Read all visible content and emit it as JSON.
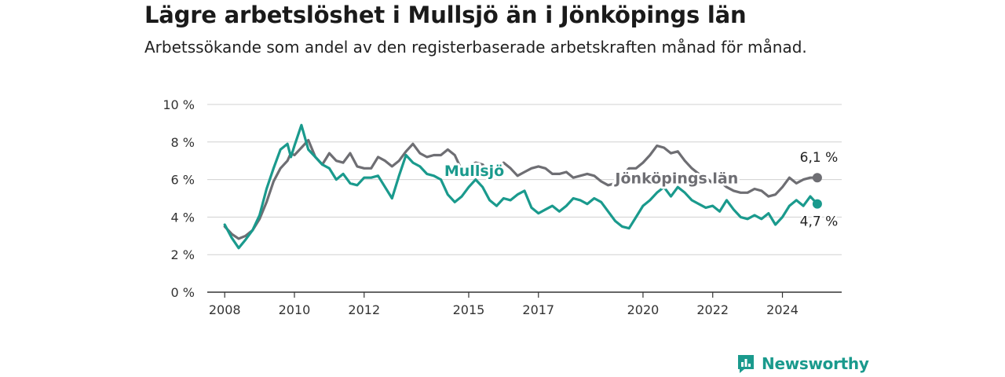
{
  "header": {
    "title": "Lägre arbetslöshet i Mullsjö än i Jönköpings län",
    "subtitle": "Arbetssökande som andel av den registerbaserade arbetskraften månad för månad."
  },
  "brand": {
    "name": "Newsworthy",
    "icon": "newsworthy-logo-icon",
    "color": "#1a9a8d"
  },
  "chart_data": {
    "type": "line",
    "xlim": [
      2007.5,
      2025.7
    ],
    "ylim": [
      0,
      10
    ],
    "yticks": [
      0,
      2,
      4,
      6,
      8,
      10
    ],
    "ytick_labels": [
      "0 %",
      "2 %",
      "4 %",
      "6 %",
      "8 %",
      "10 %"
    ],
    "xticks": [
      2008,
      2010,
      2012,
      2015,
      2017,
      2020,
      2022,
      2024
    ],
    "xtick_labels": [
      "2008",
      "2010",
      "2012",
      "2015",
      "2017",
      "2020",
      "2022",
      "2024"
    ],
    "grid": true,
    "series": [
      {
        "name": "Jönköpings län",
        "color": "#6e6e73",
        "end_label": "6,1 %",
        "points": [
          [
            2008.0,
            3.5
          ],
          [
            2008.2,
            3.1
          ],
          [
            2008.4,
            2.85
          ],
          [
            2008.6,
            3.0
          ],
          [
            2008.8,
            3.3
          ],
          [
            2009.0,
            3.9
          ],
          [
            2009.2,
            4.8
          ],
          [
            2009.4,
            5.9
          ],
          [
            2009.6,
            6.6
          ],
          [
            2009.8,
            7.0
          ],
          [
            2009.9,
            7.4
          ],
          [
            2010.0,
            7.3
          ],
          [
            2010.2,
            7.7
          ],
          [
            2010.4,
            8.1
          ],
          [
            2010.6,
            7.2
          ],
          [
            2010.8,
            6.8
          ],
          [
            2011.0,
            7.4
          ],
          [
            2011.2,
            7.0
          ],
          [
            2011.4,
            6.9
          ],
          [
            2011.6,
            7.4
          ],
          [
            2011.8,
            6.7
          ],
          [
            2012.0,
            6.6
          ],
          [
            2012.2,
            6.6
          ],
          [
            2012.4,
            7.2
          ],
          [
            2012.6,
            7.0
          ],
          [
            2012.8,
            6.7
          ],
          [
            2013.0,
            7.0
          ],
          [
            2013.2,
            7.5
          ],
          [
            2013.4,
            7.9
          ],
          [
            2013.6,
            7.4
          ],
          [
            2013.8,
            7.2
          ],
          [
            2014.0,
            7.3
          ],
          [
            2014.2,
            7.3
          ],
          [
            2014.4,
            7.6
          ],
          [
            2014.6,
            7.3
          ],
          [
            2014.8,
            6.5
          ],
          [
            2015.0,
            6.7
          ],
          [
            2015.2,
            6.9
          ],
          [
            2015.4,
            6.8
          ],
          [
            2015.6,
            6.3
          ],
          [
            2015.8,
            6.6
          ],
          [
            2016.0,
            6.9
          ],
          [
            2016.2,
            6.6
          ],
          [
            2016.4,
            6.2
          ],
          [
            2016.6,
            6.4
          ],
          [
            2016.8,
            6.6
          ],
          [
            2017.0,
            6.7
          ],
          [
            2017.2,
            6.6
          ],
          [
            2017.4,
            6.3
          ],
          [
            2017.6,
            6.3
          ],
          [
            2017.8,
            6.4
          ],
          [
            2018.0,
            6.1
          ],
          [
            2018.2,
            6.2
          ],
          [
            2018.4,
            6.3
          ],
          [
            2018.6,
            6.2
          ],
          [
            2018.8,
            5.9
          ],
          [
            2019.0,
            5.7
          ],
          [
            2019.2,
            5.8
          ],
          [
            2019.4,
            6.2
          ],
          [
            2019.6,
            6.6
          ],
          [
            2019.8,
            6.6
          ],
          [
            2020.0,
            6.9
          ],
          [
            2020.2,
            7.3
          ],
          [
            2020.4,
            7.8
          ],
          [
            2020.6,
            7.7
          ],
          [
            2020.8,
            7.4
          ],
          [
            2021.0,
            7.5
          ],
          [
            2021.2,
            7.0
          ],
          [
            2021.4,
            6.6
          ],
          [
            2021.6,
            6.3
          ],
          [
            2021.8,
            6.1
          ],
          [
            2022.0,
            5.8
          ],
          [
            2022.2,
            5.9
          ],
          [
            2022.4,
            5.6
          ],
          [
            2022.6,
            5.4
          ],
          [
            2022.8,
            5.3
          ],
          [
            2023.0,
            5.3
          ],
          [
            2023.2,
            5.5
          ],
          [
            2023.4,
            5.4
          ],
          [
            2023.6,
            5.1
          ],
          [
            2023.8,
            5.2
          ],
          [
            2024.0,
            5.6
          ],
          [
            2024.2,
            6.1
          ],
          [
            2024.4,
            5.8
          ],
          [
            2024.6,
            6.0
          ],
          [
            2024.8,
            6.1
          ],
          [
            2025.0,
            6.1
          ]
        ]
      },
      {
        "name": "Mullsjö",
        "color": "#1a9a8d",
        "end_label": "4,7 %",
        "points": [
          [
            2008.0,
            3.6
          ],
          [
            2008.2,
            2.9
          ],
          [
            2008.4,
            2.35
          ],
          [
            2008.6,
            2.8
          ],
          [
            2008.8,
            3.3
          ],
          [
            2009.0,
            4.1
          ],
          [
            2009.2,
            5.5
          ],
          [
            2009.4,
            6.6
          ],
          [
            2009.6,
            7.6
          ],
          [
            2009.8,
            7.9
          ],
          [
            2009.9,
            7.2
          ],
          [
            2010.0,
            7.8
          ],
          [
            2010.2,
            8.9
          ],
          [
            2010.4,
            7.6
          ],
          [
            2010.6,
            7.2
          ],
          [
            2010.8,
            6.8
          ],
          [
            2011.0,
            6.6
          ],
          [
            2011.2,
            6.0
          ],
          [
            2011.4,
            6.3
          ],
          [
            2011.6,
            5.8
          ],
          [
            2011.8,
            5.7
          ],
          [
            2012.0,
            6.1
          ],
          [
            2012.2,
            6.1
          ],
          [
            2012.4,
            6.2
          ],
          [
            2012.6,
            5.6
          ],
          [
            2012.8,
            5.0
          ],
          [
            2013.0,
            6.2
          ],
          [
            2013.2,
            7.3
          ],
          [
            2013.4,
            6.9
          ],
          [
            2013.6,
            6.7
          ],
          [
            2013.8,
            6.3
          ],
          [
            2014.0,
            6.2
          ],
          [
            2014.2,
            6.0
          ],
          [
            2014.4,
            5.2
          ],
          [
            2014.6,
            4.8
          ],
          [
            2014.8,
            5.1
          ],
          [
            2015.0,
            5.6
          ],
          [
            2015.2,
            6.0
          ],
          [
            2015.4,
            5.6
          ],
          [
            2015.6,
            4.9
          ],
          [
            2015.8,
            4.6
          ],
          [
            2016.0,
            5.0
          ],
          [
            2016.2,
            4.9
          ],
          [
            2016.4,
            5.2
          ],
          [
            2016.6,
            5.4
          ],
          [
            2016.8,
            4.5
          ],
          [
            2017.0,
            4.2
          ],
          [
            2017.2,
            4.4
          ],
          [
            2017.4,
            4.6
          ],
          [
            2017.6,
            4.3
          ],
          [
            2017.8,
            4.6
          ],
          [
            2018.0,
            5.0
          ],
          [
            2018.2,
            4.9
          ],
          [
            2018.4,
            4.7
          ],
          [
            2018.6,
            5.0
          ],
          [
            2018.8,
            4.8
          ],
          [
            2019.0,
            4.3
          ],
          [
            2019.2,
            3.8
          ],
          [
            2019.4,
            3.5
          ],
          [
            2019.6,
            3.4
          ],
          [
            2019.8,
            4.0
          ],
          [
            2020.0,
            4.6
          ],
          [
            2020.2,
            4.9
          ],
          [
            2020.4,
            5.3
          ],
          [
            2020.6,
            5.6
          ],
          [
            2020.8,
            5.1
          ],
          [
            2021.0,
            5.6
          ],
          [
            2021.2,
            5.3
          ],
          [
            2021.4,
            4.9
          ],
          [
            2021.6,
            4.7
          ],
          [
            2021.8,
            4.5
          ],
          [
            2022.0,
            4.6
          ],
          [
            2022.2,
            4.3
          ],
          [
            2022.4,
            4.9
          ],
          [
            2022.6,
            4.4
          ],
          [
            2022.8,
            4.0
          ],
          [
            2023.0,
            3.9
          ],
          [
            2023.2,
            4.1
          ],
          [
            2023.4,
            3.9
          ],
          [
            2023.6,
            4.2
          ],
          [
            2023.8,
            3.6
          ],
          [
            2024.0,
            4.0
          ],
          [
            2024.2,
            4.6
          ],
          [
            2024.4,
            4.9
          ],
          [
            2024.6,
            4.6
          ],
          [
            2024.8,
            5.1
          ],
          [
            2025.0,
            4.7
          ]
        ]
      }
    ],
    "annotations": [
      {
        "series": "Mullsjö",
        "text": "Mullsjö",
        "x": 2014.3,
        "y": 6.2
      },
      {
        "series": "Jönköpings län",
        "text": "Jönköpings län",
        "x": 2019.2,
        "y": 5.8
      }
    ]
  }
}
